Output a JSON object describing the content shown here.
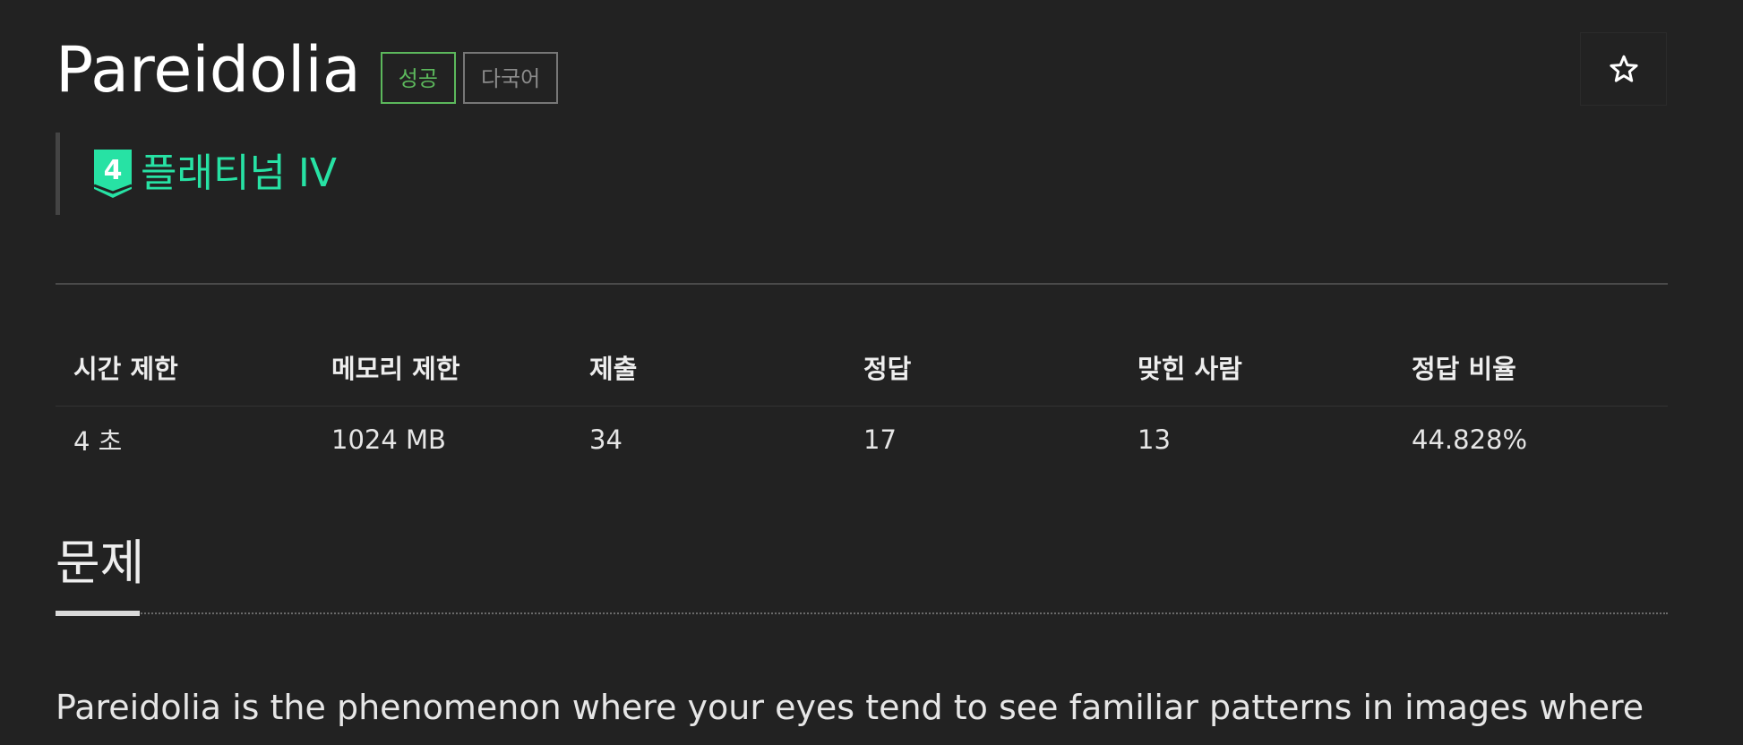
{
  "problem": {
    "title": "Pareidolia",
    "badges": {
      "status": "성공",
      "language": "다국어"
    },
    "favorite_icon": "star-outline-icon",
    "tier": {
      "number": "4",
      "label": "플래티넘 IV",
      "color": "#27e2a4"
    }
  },
  "stats": {
    "headers": [
      "시간 제한",
      "메모리 제한",
      "제출",
      "정답",
      "맞힌 사람",
      "정답 비율"
    ],
    "values": [
      "4 초",
      "1024 MB",
      "34",
      "17",
      "13",
      "44.828%"
    ]
  },
  "section": {
    "title": "문제",
    "text": "Pareidolia is the phenomenon where your eyes tend to see familiar patterns in images where"
  },
  "colors": {
    "background": "#222222",
    "success": "#5cb85c",
    "tier": "#27e2a4"
  }
}
